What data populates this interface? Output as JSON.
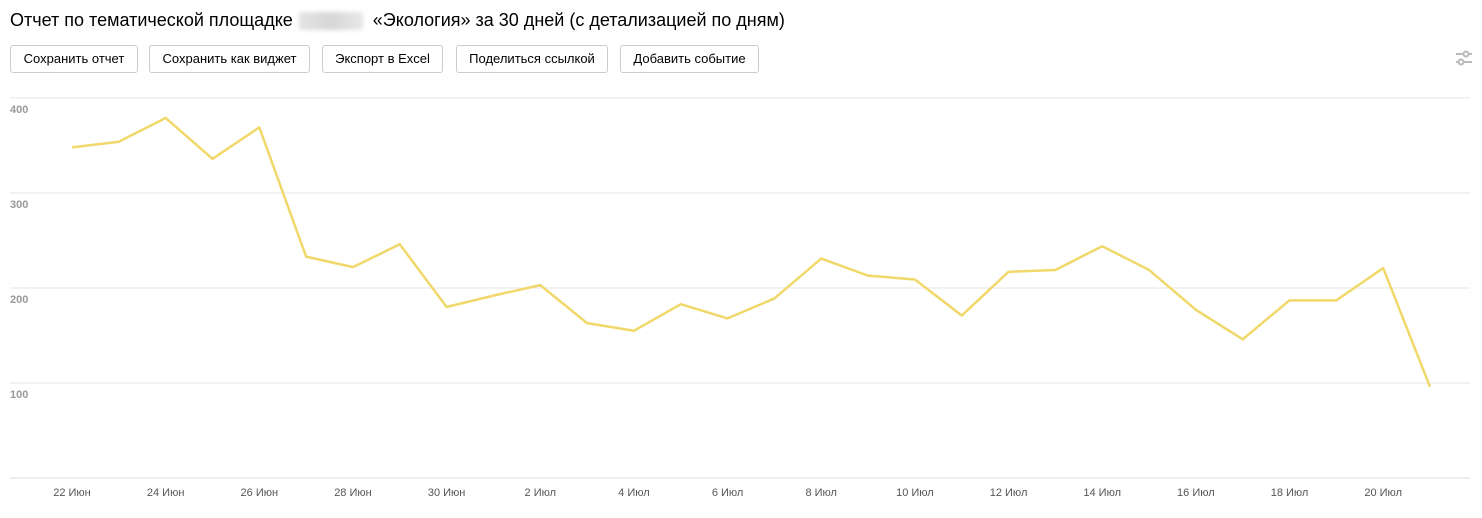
{
  "header": {
    "title_before": "Отчет по тематической площадке",
    "title_after": "«Экология» за 30 дней (с детализацией по дням)"
  },
  "buttons": [
    "Сохранить отчет",
    "Сохранить как виджет",
    "Экспорт в Excel",
    "Поделиться ссылкой",
    "Добавить событие"
  ],
  "chart_data": {
    "type": "line",
    "color": "#f0d86a",
    "categories": [
      "22 Июн",
      null,
      "24 Июн",
      null,
      "26 Июн",
      null,
      "28 Июн",
      null,
      "30 Июн",
      null,
      "2 Июл",
      null,
      "4 Июл",
      null,
      "6 Июл",
      null,
      "8 Июл",
      null,
      "10 Июл",
      null,
      "12 Июл",
      null,
      "14 Июл",
      null,
      "16 Июл",
      null,
      "18 Июл",
      null,
      "20 Июл",
      null
    ],
    "values": [
      348,
      354,
      379,
      336,
      369,
      233,
      222,
      246,
      180,
      192,
      203,
      163,
      155,
      183,
      168,
      189,
      231,
      213,
      209,
      171,
      217,
      219,
      244,
      219,
      177,
      146,
      187,
      187,
      221,
      96
    ],
    "ylim": [
      0,
      400
    ],
    "yticks": [
      100,
      200,
      300,
      400
    ],
    "grid": true
  }
}
